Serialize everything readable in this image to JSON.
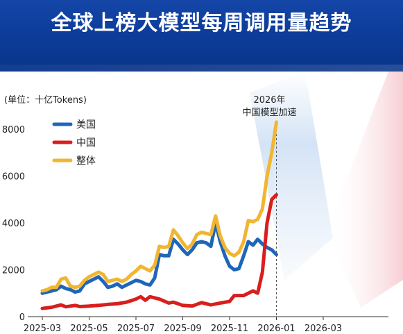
{
  "title": "全球上榜大模型每周调用量趋势",
  "chart_data": {
    "type": "line",
    "unit_label": "(单位：十亿Tokens)",
    "ylim": [
      0,
      8600
    ],
    "yticks": [
      0,
      2000,
      4000,
      6000,
      8000
    ],
    "xlim": [
      0,
      12.5
    ],
    "xticks": [
      {
        "x": 0,
        "label": "2025-03"
      },
      {
        "x": 2,
        "label": "2025-05"
      },
      {
        "x": 4,
        "label": "2025-07"
      },
      {
        "x": 6,
        "label": "2025-09"
      },
      {
        "x": 8,
        "label": "2025-11"
      },
      {
        "x": 10,
        "label": "2026-01"
      },
      {
        "x": 12,
        "label": "2026-03"
      }
    ],
    "legend_position": "top-left",
    "annotation": {
      "x": 10,
      "lines": [
        "2026年",
        "中国模型加速"
      ]
    },
    "series": [
      {
        "name": "美国",
        "color": "#1f66b8",
        "points": [
          [
            0.0,
            1000
          ],
          [
            0.2,
            1050
          ],
          [
            0.4,
            1100
          ],
          [
            0.6,
            1150
          ],
          [
            0.8,
            1300
          ],
          [
            1.0,
            1200
          ],
          [
            1.2,
            1150
          ],
          [
            1.4,
            1050
          ],
          [
            1.6,
            1100
          ],
          [
            1.8,
            1400
          ],
          [
            2.0,
            1500
          ],
          [
            2.2,
            1600
          ],
          [
            2.4,
            1700
          ],
          [
            2.6,
            1500
          ],
          [
            2.8,
            1250
          ],
          [
            3.0,
            1300
          ],
          [
            3.2,
            1400
          ],
          [
            3.4,
            1250
          ],
          [
            3.6,
            1350
          ],
          [
            3.8,
            1450
          ],
          [
            4.0,
            1550
          ],
          [
            4.2,
            1500
          ],
          [
            4.4,
            1400
          ],
          [
            4.6,
            1350
          ],
          [
            4.8,
            1650
          ],
          [
            5.0,
            2650
          ],
          [
            5.2,
            2600
          ],
          [
            5.4,
            2600
          ],
          [
            5.6,
            3300
          ],
          [
            5.8,
            3100
          ],
          [
            6.0,
            2850
          ],
          [
            6.2,
            2650
          ],
          [
            6.4,
            2850
          ],
          [
            6.6,
            3150
          ],
          [
            6.8,
            3200
          ],
          [
            7.0,
            3150
          ],
          [
            7.2,
            3000
          ],
          [
            7.4,
            4000
          ],
          [
            7.6,
            3200
          ],
          [
            7.8,
            2600
          ],
          [
            8.0,
            2150
          ],
          [
            8.2,
            2000
          ],
          [
            8.4,
            2050
          ],
          [
            8.6,
            2600
          ],
          [
            8.8,
            3200
          ],
          [
            9.0,
            3050
          ],
          [
            9.2,
            3300
          ],
          [
            9.4,
            3100
          ],
          [
            9.6,
            2950
          ],
          [
            9.8,
            2850
          ],
          [
            10.0,
            2650
          ]
        ]
      },
      {
        "name": "中国",
        "color": "#d91e1e",
        "points": [
          [
            0.0,
            350
          ],
          [
            0.4,
            400
          ],
          [
            0.8,
            500
          ],
          [
            1.0,
            420
          ],
          [
            1.4,
            480
          ],
          [
            1.6,
            430
          ],
          [
            2.0,
            450
          ],
          [
            2.4,
            480
          ],
          [
            2.8,
            520
          ],
          [
            3.2,
            550
          ],
          [
            3.6,
            620
          ],
          [
            4.0,
            750
          ],
          [
            4.2,
            850
          ],
          [
            4.4,
            700
          ],
          [
            4.6,
            850
          ],
          [
            5.0,
            750
          ],
          [
            5.4,
            580
          ],
          [
            5.6,
            620
          ],
          [
            6.0,
            480
          ],
          [
            6.4,
            450
          ],
          [
            6.8,
            600
          ],
          [
            7.2,
            500
          ],
          [
            7.6,
            580
          ],
          [
            8.0,
            650
          ],
          [
            8.2,
            900
          ],
          [
            8.6,
            900
          ],
          [
            9.0,
            1100
          ],
          [
            9.2,
            1000
          ],
          [
            9.4,
            1900
          ],
          [
            9.6,
            4000
          ],
          [
            9.8,
            5000
          ],
          [
            10.0,
            5200
          ]
        ]
      },
      {
        "name": "整体",
        "color": "#f0b632",
        "points": [
          [
            0.0,
            1100
          ],
          [
            0.2,
            1150
          ],
          [
            0.4,
            1250
          ],
          [
            0.6,
            1250
          ],
          [
            0.8,
            1600
          ],
          [
            1.0,
            1650
          ],
          [
            1.2,
            1300
          ],
          [
            1.4,
            1250
          ],
          [
            1.6,
            1300
          ],
          [
            1.8,
            1550
          ],
          [
            2.0,
            1700
          ],
          [
            2.2,
            1800
          ],
          [
            2.4,
            1900
          ],
          [
            2.6,
            1800
          ],
          [
            2.8,
            1500
          ],
          [
            3.0,
            1550
          ],
          [
            3.2,
            1600
          ],
          [
            3.4,
            1500
          ],
          [
            3.6,
            1600
          ],
          [
            3.8,
            1800
          ],
          [
            4.0,
            1950
          ],
          [
            4.2,
            2150
          ],
          [
            4.4,
            2050
          ],
          [
            4.6,
            1950
          ],
          [
            4.8,
            2200
          ],
          [
            5.0,
            3000
          ],
          [
            5.2,
            2950
          ],
          [
            5.4,
            3000
          ],
          [
            5.6,
            3700
          ],
          [
            5.8,
            3450
          ],
          [
            6.0,
            3150
          ],
          [
            6.2,
            2900
          ],
          [
            6.4,
            3100
          ],
          [
            6.6,
            3500
          ],
          [
            6.8,
            3600
          ],
          [
            7.0,
            3550
          ],
          [
            7.2,
            3500
          ],
          [
            7.4,
            4300
          ],
          [
            7.6,
            3450
          ],
          [
            7.8,
            2950
          ],
          [
            8.0,
            2700
          ],
          [
            8.2,
            2600
          ],
          [
            8.4,
            2750
          ],
          [
            8.6,
            3200
          ],
          [
            8.8,
            4100
          ],
          [
            9.0,
            4050
          ],
          [
            9.2,
            4150
          ],
          [
            9.4,
            4600
          ],
          [
            9.6,
            6000
          ],
          [
            9.8,
            7000
          ],
          [
            10.0,
            8300
          ]
        ]
      }
    ]
  }
}
